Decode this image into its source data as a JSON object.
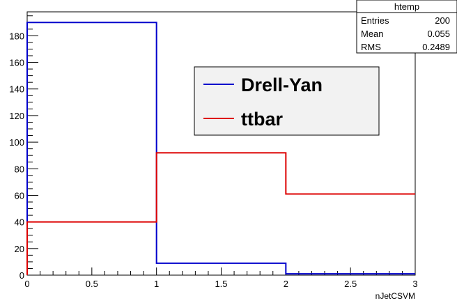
{
  "chart_data": {
    "type": "step-histogram",
    "title": "",
    "xlabel": "nJetCSVM",
    "ylabel": "",
    "xlim": [
      0,
      3
    ],
    "ylim": [
      0,
      198
    ],
    "bin_edges": [
      0,
      1,
      2,
      3
    ],
    "x_ticks": [
      0,
      0.5,
      1,
      1.5,
      2,
      2.5,
      3
    ],
    "x_tick_labels": [
      "0",
      "0.5",
      "1",
      "1.5",
      "2",
      "2.5",
      "3"
    ],
    "y_ticks": [
      0,
      20,
      40,
      60,
      80,
      100,
      120,
      140,
      160,
      180
    ],
    "y_tick_labels": [
      "0",
      "20",
      "40",
      "60",
      "80",
      "100",
      "120",
      "140",
      "160",
      "180"
    ],
    "series": [
      {
        "name": "Drell-Yan",
        "color": "#0000cc",
        "values": [
          190,
          9,
          1
        ]
      },
      {
        "name": "ttbar",
        "color": "#dd0000",
        "values": [
          40,
          92,
          61
        ]
      }
    ],
    "grid": false,
    "legend": {
      "position": "top-right",
      "entries": [
        "Drell-Yan",
        "ttbar"
      ]
    },
    "stats_box": {
      "title": "htemp",
      "rows": [
        {
          "label": "Entries",
          "value": "200"
        },
        {
          "label": "Mean",
          "value": "0.055"
        },
        {
          "label": "RMS",
          "value": "0.2489"
        }
      ]
    }
  }
}
